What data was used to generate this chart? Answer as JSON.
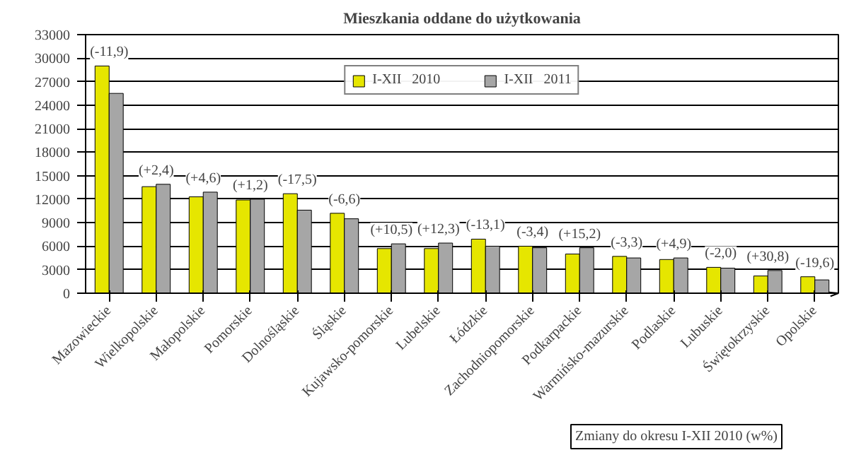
{
  "chart_data": {
    "type": "bar",
    "title": "Mieszkania oddane do użytkowania",
    "categories": [
      "Mazowieckie",
      "Wielkopolskie",
      "Małopolskie",
      "Pomorskie",
      "Dolnośląskie",
      "Śląskie",
      "Kujawsko-pomorskie",
      "Lubelskie",
      "Łódzkie",
      "Zachodniopomorskie",
      "Podkarpackie",
      "Warmińsko-mazurskie",
      "Podlaskie",
      "Lubuskie",
      "Świętokrzyskie",
      "Opolskie"
    ],
    "series": [
      {
        "name": "I-XII   2010",
        "color": "#e6e600",
        "values": [
          29000,
          13600,
          12300,
          11900,
          12700,
          10200,
          5700,
          5700,
          6900,
          6000,
          5000,
          4700,
          4300,
          3300,
          2200,
          2100
        ]
      },
      {
        "name": "I-XII   2011",
        "color": "#a6a6a6",
        "values": [
          25500,
          13900,
          12900,
          12000,
          10600,
          9500,
          6300,
          6400,
          6000,
          5800,
          5800,
          4500,
          4500,
          3200,
          2900,
          1700
        ]
      }
    ],
    "ylim": [
      0,
      33000
    ],
    "yticks": [
      0,
      3000,
      6000,
      9000,
      12000,
      15000,
      18000,
      21000,
      24000,
      27000,
      30000,
      33000
    ],
    "grid": "y",
    "legend": "top",
    "annotations": [
      {
        "text": "(-11,9)",
        "x": "Mazowieckie",
        "y": 29000
      },
      {
        "text": "(+2,4)",
        "x": "Wielkopolskie",
        "y": 13900
      },
      {
        "text": "(+4,6)",
        "x": "Małopolskie",
        "y": 12900
      },
      {
        "text": "(+1,2)",
        "x": "Pomorskie",
        "y": 12000
      },
      {
        "text": "(-17,5)",
        "x": "Dolnośląskie",
        "y": 12700
      },
      {
        "text": "(-6,6)",
        "x": "Śląskie",
        "y": 10200
      },
      {
        "text": "(+10,5)",
        "x": "Kujawsko-pomorskie",
        "y": 6300
      },
      {
        "text": "(+12,3)",
        "x": "Lubelskie",
        "y": 6400
      },
      {
        "text": "(-13,1)",
        "x": "Łódzkie",
        "y": 6900
      },
      {
        "text": "(-3,4)",
        "x": "Zachodniopomorskie",
        "y": 6000
      },
      {
        "text": "(+15,2)",
        "x": "Podkarpackie",
        "y": 5800
      },
      {
        "text": "(-3,3)",
        "x": "Warmińsko-mazurskie",
        "y": 4700
      },
      {
        "text": "(+4,9)",
        "x": "Podlaskie",
        "y": 4500
      },
      {
        "text": "(-2,0)",
        "x": "Lubuskie",
        "y": 3300
      },
      {
        "text": "(+30,8)",
        "x": "Świętokrzyskie",
        "y": 2900
      },
      {
        "text": "(-19,6)",
        "x": "Opolskie",
        "y": 2100
      },
      "Zmiany do okresu I-XII 2010 (w%)"
    ]
  }
}
